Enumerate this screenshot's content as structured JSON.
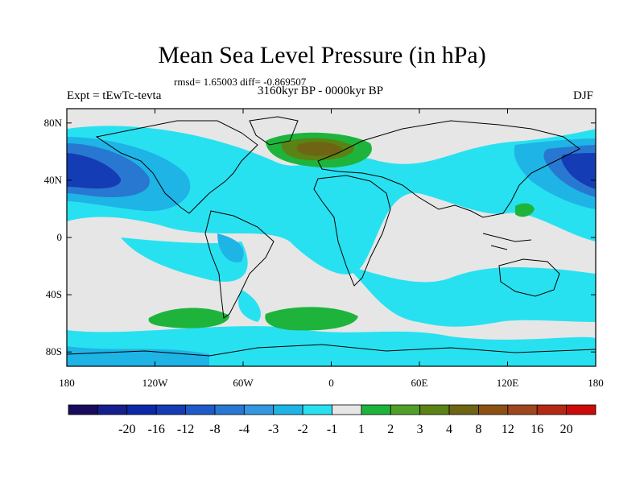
{
  "header": {
    "title": "Mean Sea Level Pressure (in hPa)",
    "stats": "rmsd= 1.65003 diff= -0.869507",
    "experiment": "Expt = tEwTc-tevta",
    "period": "3160kyr BP - 0000kyr BP",
    "season": "DJF"
  },
  "axes": {
    "lat_ticks": [
      {
        "lat": 80,
        "label": "80N"
      },
      {
        "lat": 40,
        "label": "40N"
      },
      {
        "lat": 0,
        "label": "0"
      },
      {
        "lat": -40,
        "label": "40S"
      },
      {
        "lat": -80,
        "label": "80S"
      }
    ],
    "lon_ticks": [
      {
        "lon": -180,
        "label": "180"
      },
      {
        "lon": -120,
        "label": "120W"
      },
      {
        "lon": -60,
        "label": "60W"
      },
      {
        "lon": 0,
        "label": "0"
      },
      {
        "lon": 60,
        "label": "60E"
      },
      {
        "lon": 120,
        "label": "120E"
      },
      {
        "lon": 180,
        "label": "180"
      }
    ],
    "lon_range": [
      -180,
      180
    ],
    "lat_range": [
      -90,
      90
    ]
  },
  "colorbar": {
    "colors": [
      "#1a0a5e",
      "#141e8c",
      "#0a28a8",
      "#143cb4",
      "#1e5ac8",
      "#2878d2",
      "#3296e1",
      "#1eb4e6",
      "#28e1f0",
      "#e6e6e6",
      "#1eb43c",
      "#50a028",
      "#5a8214",
      "#6e6414",
      "#8c5014",
      "#a0461e",
      "#b42814",
      "#cd0a0a"
    ],
    "labels": [
      "-20",
      "-16",
      "-12",
      "-8",
      "-4",
      "-3",
      "-2",
      "-1",
      "1",
      "2",
      "3",
      "4",
      "8",
      "12",
      "16",
      "20"
    ]
  },
  "map_regions": [
    {
      "name": "north-pacific-low",
      "lon": -170,
      "lat": 40,
      "rlon": 30,
      "rlat": 20,
      "level": -8
    },
    {
      "name": "north-pacific-low",
      "lon": 170,
      "lat": 42,
      "rlon": 20,
      "rlat": 18,
      "level": -8
    },
    {
      "name": "north-atlantic-high",
      "lon": -10,
      "lat": 68,
      "rlon": 25,
      "rlat": 10,
      "level": 3
    },
    {
      "name": "south-pacific-high",
      "lon": -100,
      "lat": -50,
      "rlon": 30,
      "rlat": 8,
      "level": 1
    },
    {
      "name": "south-atlantic-high",
      "lon": 0,
      "lat": -55,
      "rlon": 25,
      "rlat": 8,
      "level": 1
    },
    {
      "name": "west-pacific-high",
      "lon": 130,
      "lat": 20,
      "rlon": 5,
      "rlat": 4,
      "level": 1
    }
  ]
}
